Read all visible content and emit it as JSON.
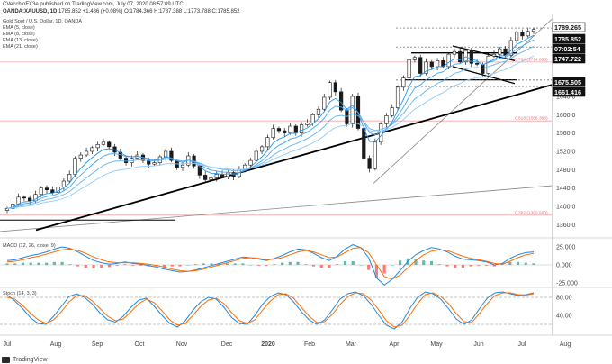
{
  "header": {
    "publisher": "CVecchioFX3e published on TradingView.com, July 07, 2020 08:57:09 UTC",
    "symbol": "OANDA:XAUUSD, 1D",
    "values": "1785.852  +1.486 (+0.08%)  O:1784.366  H:1787.388  L:1773.788  C:1785.852"
  },
  "price_legend": {
    "title": "Gold Spot / U.S. Dollar, 1D, OANDA",
    "ema": [
      "EMA (5, close)",
      "EMA (8, close)",
      "EMA (13, close)",
      "EMA (21, close)"
    ]
  },
  "macd_legend": "MACD (12, 26, close, 9)",
  "stoch_legend": "Stoch (14, 3, 3)",
  "footer": "TradingView",
  "colors": {
    "candle": "#1a1a1a",
    "ema5": "#2196f3",
    "ema8": "#42a5f5",
    "ema13": "#64b5f6",
    "ema21": "#90caf9",
    "macd": "#1e88e5",
    "signal": "#ff6d00",
    "hist_pos": "#26a69a",
    "hist_neg": "#ef5350",
    "fib": "#f4a3a3",
    "trend": "#000000",
    "channel": "#888888"
  },
  "chart_data": [
    {
      "type": "line",
      "panel": "price",
      "title": "Gold Spot / U.S. Dollar, 1D, OANDA",
      "x_ticks": [
        "Jul",
        "Aug",
        "Sep",
        "Oct",
        "Nov",
        "Dec",
        "2020",
        "Feb",
        "Mar",
        "Apr",
        "May",
        "Jun",
        "Jul",
        "Aug"
      ],
      "y_ticks": [
        1360.0,
        1400.0,
        1440.0,
        1480.0,
        1520.0,
        1560.0,
        1600.0,
        1640.0
      ],
      "ylim": [
        1335,
        1815
      ],
      "close": [
        1395,
        1405,
        1420,
        1418,
        1412,
        1426,
        1440,
        1436,
        1430,
        1442,
        1455,
        1470,
        1505,
        1512,
        1520,
        1528,
        1535,
        1540,
        1530,
        1518,
        1505,
        1495,
        1505,
        1512,
        1500,
        1492,
        1495,
        1508,
        1520,
        1500,
        1485,
        1490,
        1510,
        1488,
        1468,
        1458,
        1462,
        1470,
        1465,
        1474,
        1465,
        1480,
        1490,
        1500,
        1520,
        1530,
        1550,
        1570,
        1565,
        1560,
        1575,
        1560,
        1578,
        1582,
        1600,
        1612,
        1638,
        1670,
        1650,
        1610,
        1580,
        1640,
        1570,
        1505,
        1482,
        1540,
        1580,
        1598,
        1615,
        1660,
        1680,
        1720,
        1725,
        1690,
        1715,
        1705,
        1718,
        1705,
        1732,
        1738,
        1715,
        1740,
        1712,
        1710,
        1690,
        1728,
        1732,
        1744,
        1730,
        1762,
        1780,
        1772,
        1782,
        1786
      ],
      "price_labels": [
        {
          "text": "1789.265",
          "style": "ema"
        },
        {
          "text": "1785.852",
          "style": "price"
        },
        {
          "text": "07:02:54",
          "style": "time"
        },
        {
          "text": "1747.722",
          "style": "price"
        },
        {
          "text": "1675.605",
          "style": "price"
        },
        {
          "text": "1661.416",
          "style": "price"
        }
      ],
      "fib_labels": [
        "0.764 (1714.888)",
        "0.618 (1586.368)",
        "0.382 (1380.560)"
      ]
    },
    {
      "type": "bar",
      "panel": "macd",
      "title": "MACD (12, 26, close, 9)",
      "y_ticks": [
        "25.000",
        "0.000",
        "-25.000"
      ],
      "ylim": [
        -30,
        35
      ],
      "macd": [
        6,
        7,
        10,
        13,
        15,
        18,
        22,
        25,
        23,
        18,
        12,
        6,
        3,
        1,
        2,
        4,
        2,
        1,
        -1,
        -3,
        -6,
        -8,
        -10,
        -9,
        -7,
        -4,
        -1,
        2,
        5,
        8,
        11,
        10,
        8,
        6,
        9,
        13,
        18,
        22,
        21,
        16,
        10,
        6,
        12,
        22,
        28,
        24,
        10,
        -18,
        -28,
        -20,
        -8,
        5,
        14,
        20,
        24,
        22,
        18,
        12,
        8,
        7,
        6,
        4,
        0,
        2,
        9,
        14,
        17,
        18
      ],
      "signal": [
        4,
        5,
        7,
        10,
        12,
        15,
        18,
        21,
        22,
        20,
        16,
        11,
        7,
        4,
        3,
        3,
        3,
        2,
        1,
        -1,
        -3,
        -6,
        -8,
        -9,
        -8,
        -6,
        -3,
        0,
        3,
        6,
        9,
        10,
        9,
        7,
        8,
        10,
        14,
        18,
        20,
        18,
        14,
        10,
        11,
        17,
        23,
        24,
        17,
        0,
        -16,
        -20,
        -14,
        -4,
        6,
        14,
        19,
        21,
        20,
        16,
        12,
        9,
        7,
        5,
        2,
        1,
        5,
        10,
        14,
        16
      ]
    },
    {
      "type": "line",
      "panel": "stoch",
      "title": "Stoch (14, 3, 3)",
      "y_ticks": [
        "80.00",
        "40.00"
      ],
      "ylim": [
        0,
        100
      ],
      "k": [
        85,
        72,
        55,
        35,
        22,
        20,
        38,
        60,
        82,
        88,
        80,
        65,
        45,
        30,
        25,
        38,
        58,
        74,
        78,
        60,
        40,
        22,
        14,
        28,
        52,
        70,
        80,
        76,
        58,
        35,
        22,
        20,
        40,
        65,
        82,
        90,
        86,
        70,
        48,
        30,
        20,
        30,
        52,
        76,
        88,
        92,
        84,
        65,
        40,
        18,
        10,
        25,
        55,
        80,
        92,
        88,
        76,
        55,
        32,
        20,
        30,
        55,
        78,
        90,
        92,
        88,
        84,
        86,
        90
      ],
      "d": [
        80,
        76,
        62,
        45,
        30,
        22,
        30,
        48,
        70,
        84,
        84,
        72,
        55,
        38,
        28,
        32,
        48,
        66,
        76,
        68,
        50,
        30,
        18,
        22,
        40,
        60,
        74,
        78,
        66,
        46,
        28,
        22,
        30,
        52,
        72,
        86,
        88,
        78,
        58,
        38,
        24,
        26,
        42,
        64,
        82,
        90,
        88,
        74,
        52,
        28,
        14,
        18,
        40,
        66,
        86,
        90,
        82,
        66,
        44,
        26,
        24,
        44,
        66,
        84,
        90,
        90,
        86,
        85,
        88
      ]
    }
  ]
}
